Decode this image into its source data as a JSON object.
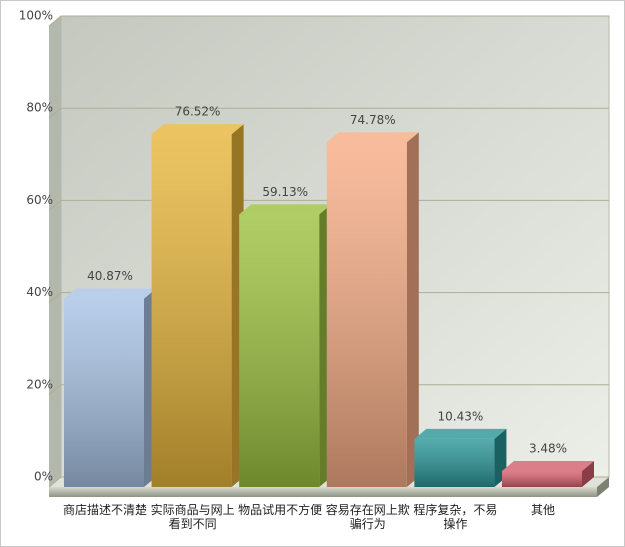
{
  "chart_data": {
    "type": "bar",
    "categories": [
      "商店描述不清楚",
      "实际商品与网上看到不同",
      "物品试用不方便",
      "容易存在网上欺骗行为",
      "程序复杂，不易操作",
      "其他"
    ],
    "values": [
      40.87,
      76.52,
      59.13,
      74.78,
      10.43,
      3.48
    ],
    "value_labels": [
      "40.87%",
      "76.52%",
      "59.13%",
      "74.78%",
      "10.43%",
      "3.48%"
    ],
    "colors": [
      "#a7c2e4",
      "#e6b53a",
      "#9cc13e",
      "#f7ac85",
      "#2a9597",
      "#d45e6c"
    ],
    "ylim": [
      0,
      100
    ],
    "yticks": [
      {
        "value": 0,
        "label": "0%"
      },
      {
        "value": 20,
        "label": "20%"
      },
      {
        "value": 40,
        "label": "40%"
      },
      {
        "value": 60,
        "label": "60%"
      },
      {
        "value": 80,
        "label": "80%"
      },
      {
        "value": 100,
        "label": "100%"
      }
    ],
    "grid": true
  }
}
